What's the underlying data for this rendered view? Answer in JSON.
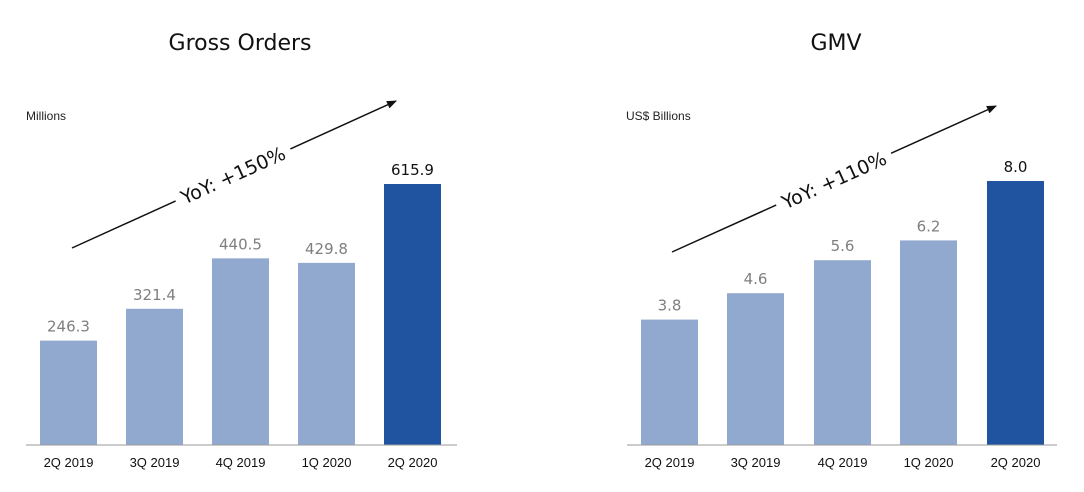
{
  "chart_data": [
    {
      "type": "bar",
      "title": "Gross Orders",
      "ylabel": "Millions",
      "xlabel": "",
      "categories": [
        "2Q 2019",
        "3Q 2019",
        "4Q 2019",
        "1Q 2020",
        "2Q 2020"
      ],
      "values": [
        246.3,
        321.4,
        440.5,
        429.8,
        615.9
      ],
      "value_labels": [
        "246.3",
        "321.4",
        "440.5",
        "429.8",
        "615.9"
      ],
      "ylim": [
        0,
        615.9
      ],
      "grid": false,
      "annotation": "YoY: +150%",
      "highlight_index": 4
    },
    {
      "type": "bar",
      "title": "GMV",
      "ylabel": "US$ Billions",
      "xlabel": "",
      "categories": [
        "2Q 2019",
        "3Q 2019",
        "4Q 2019",
        "1Q 2020",
        "2Q 2020"
      ],
      "values": [
        3.8,
        4.6,
        5.6,
        6.2,
        8.0
      ],
      "value_labels": [
        "3.8",
        "4.6",
        "5.6",
        "6.2",
        "8.0"
      ],
      "ylim": [
        0,
        8.0
      ],
      "grid": false,
      "annotation": "YoY: +110%",
      "highlight_index": 4
    }
  ],
  "colors": {
    "bar": "#91a9ce",
    "bar_highlight": "#2054a0",
    "value_text": "#7f7f7f",
    "value_text_highlight": "#111111",
    "axis": "#999999",
    "arrow": "#111111"
  }
}
